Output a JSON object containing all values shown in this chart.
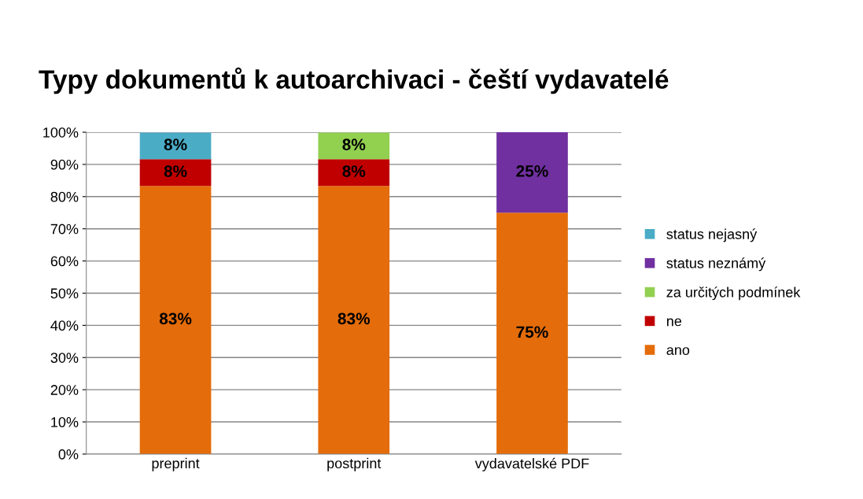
{
  "chart_data": {
    "type": "bar",
    "stacked": true,
    "title": "Typy dokumentů k autoarchivaci - čeští vydavatelé",
    "categories": [
      "preprint",
      "postprint",
      "vydavatelské PDF"
    ],
    "series": [
      {
        "name": "ano",
        "color": "#e46c0a",
        "values": [
          83.3,
          83.3,
          75
        ],
        "value_labels": [
          "83%",
          "83%",
          "75%"
        ]
      },
      {
        "name": "ne",
        "color": "#c00000",
        "values": [
          8.3,
          8.3,
          null
        ],
        "value_labels": [
          "8%",
          "8%",
          null
        ]
      },
      {
        "name": "za určitých podmínek",
        "color": "#92d050",
        "values": [
          null,
          8.3,
          null
        ],
        "value_labels": [
          null,
          "8%",
          null
        ]
      },
      {
        "name": "status neznámý",
        "color": "#7030a0",
        "values": [
          null,
          null,
          25
        ],
        "value_labels": [
          null,
          null,
          "25%"
        ]
      },
      {
        "name": "status nejasný",
        "color": "#4bacc6",
        "values": [
          8.3,
          null,
          null
        ],
        "value_labels": [
          "8%",
          null,
          null
        ]
      }
    ],
    "ylim": [
      0,
      100
    ],
    "yticks": [
      {
        "value": 0,
        "label": "0%"
      },
      {
        "value": 10,
        "label": "10%"
      },
      {
        "value": 20,
        "label": "20%"
      },
      {
        "value": 30,
        "label": "30%"
      },
      {
        "value": 40,
        "label": "40%"
      },
      {
        "value": 50,
        "label": "50%"
      },
      {
        "value": 60,
        "label": "60%"
      },
      {
        "value": 70,
        "label": "70%"
      },
      {
        "value": 80,
        "label": "80%"
      },
      {
        "value": 90,
        "label": "90%"
      },
      {
        "value": 100,
        "label": "100%"
      }
    ],
    "grid": "y",
    "legend": "right"
  }
}
